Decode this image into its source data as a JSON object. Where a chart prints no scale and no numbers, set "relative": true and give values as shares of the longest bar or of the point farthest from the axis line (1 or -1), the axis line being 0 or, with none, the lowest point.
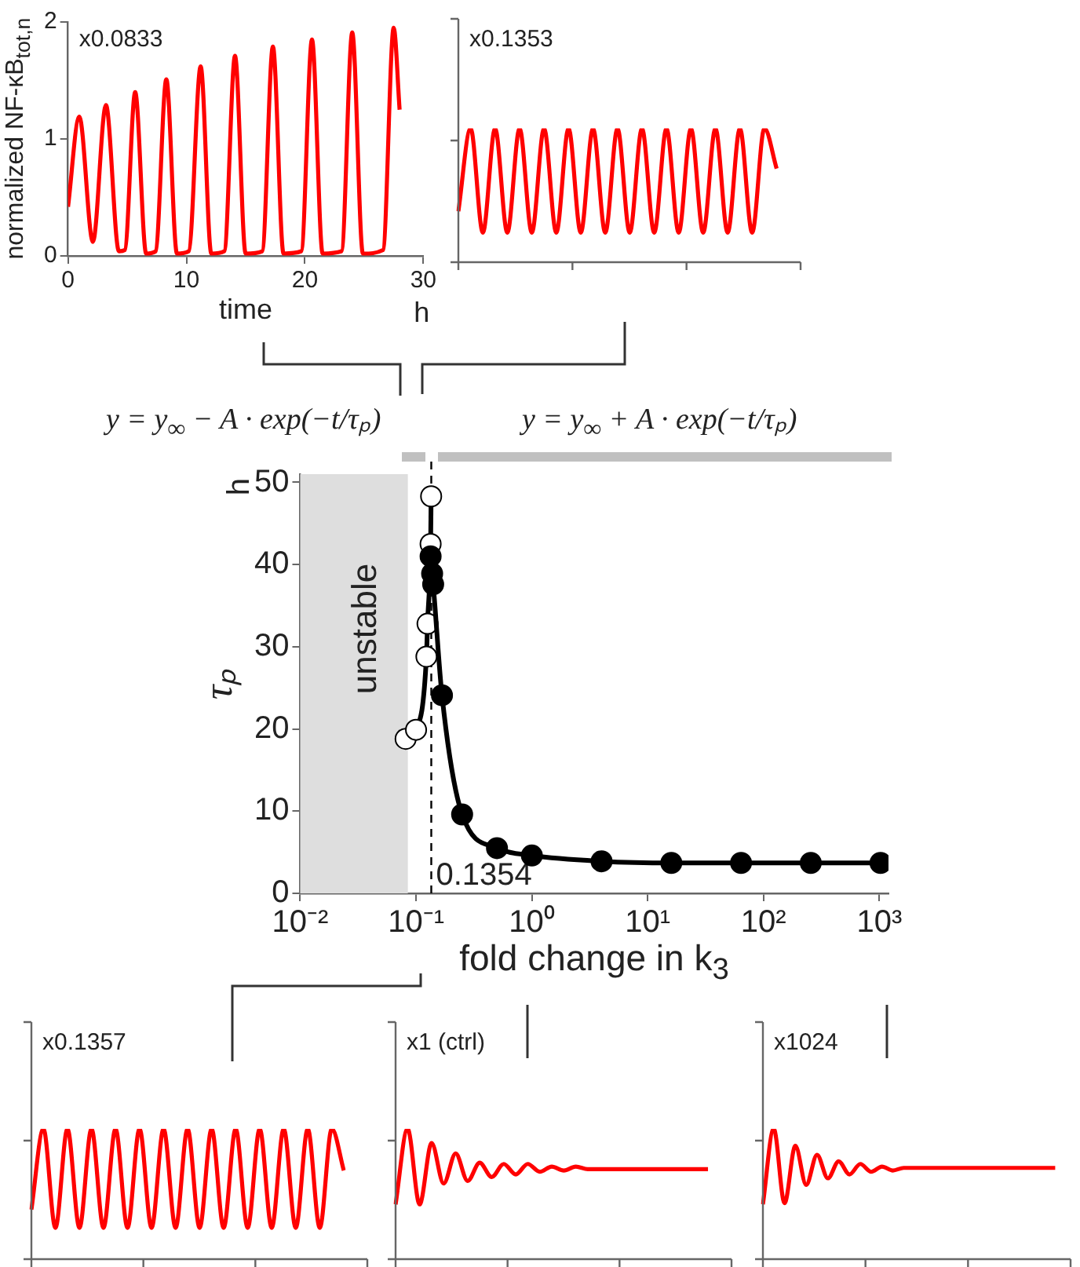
{
  "chart_data": [
    {
      "type": "line",
      "title": "x0.0833",
      "xlabel": "time",
      "ylabel": "normalized NF-κB$_{tot,n}$",
      "annotations": [
        "h"
      ],
      "x": [
        0,
        0.95,
        2.1,
        3.2,
        4.3,
        4.8,
        5.67,
        6.6,
        7.4,
        8.3,
        9.2,
        10.2,
        11.2,
        12.1,
        13.2,
        14.1,
        15.0,
        16.4,
        17.3,
        18.2,
        19.7,
        20.6,
        21.5,
        23.1,
        24.0,
        24.9,
        26.6,
        27.5,
        28.0
      ],
      "values": [
        0.42,
        1.19,
        0.12,
        1.29,
        0.04,
        0.05,
        1.4,
        0.02,
        0.04,
        1.51,
        0.02,
        0.04,
        1.62,
        0.02,
        0.04,
        1.71,
        0.02,
        0.04,
        1.79,
        0.02,
        0.04,
        1.85,
        0.02,
        0.04,
        1.91,
        0.02,
        0.05,
        1.95,
        1.25
      ],
      "color": "#ff0000",
      "xlim": [
        0,
        30
      ],
      "ylim": [
        0,
        2
      ],
      "xticks": [
        0,
        10,
        20,
        30
      ],
      "yticks": [
        0,
        1,
        2
      ]
    },
    {
      "type": "line",
      "title": "x0.1353",
      "relative": true,
      "categories": [
        null,
        null,
        null,
        null,
        null,
        null,
        null,
        null,
        null,
        null,
        null,
        null,
        null,
        null,
        null,
        null,
        null,
        null,
        null,
        null,
        null,
        null,
        null,
        null,
        null,
        null,
        null
      ],
      "values": [
        0.38,
        1,
        0.22,
        1,
        0.22,
        1,
        0.22,
        1,
        0.22,
        1,
        0.22,
        1,
        0.22,
        1,
        0.22,
        1,
        0.22,
        1,
        0.22,
        1,
        0.22,
        1,
        0.22,
        1,
        0.22,
        1,
        0.7
      ],
      "color": "#ff0000"
    },
    {
      "type": "line",
      "ylabel": "τₚ",
      "xlabel": "fold change in k$_{3}$",
      "annotations": [
        "h",
        "y = y$_{∞}$ − A · exp(−t/τₚ)",
        "y = y$_{∞}$ + A · exp(−t/τₚ)"
      ],
      "series": [
        {
          "x": [
            0.0813,
            0.1,
            0.123,
            0.1257,
            0.1336,
            0.135
          ],
          "values": [
            18.8,
            19.9,
            28.8,
            32.8,
            42.5,
            48.3
          ],
          "color": "#ffffff"
        },
        {
          "x": [
            0.1336,
            0.1377,
            0.1406,
            0.1675,
            0.25,
            0.5,
            1,
            4,
            16,
            64,
            256,
            1024
          ],
          "values": [
            41.0,
            38.9,
            37.6,
            24.1,
            9.6,
            5.5,
            4.6,
            3.9,
            3.7,
            3.7,
            3.7,
            3.7
          ],
          "color": "#000000"
        }
      ],
      "xlim": [
        0.01,
        1200
      ],
      "ylim": [
        0,
        51
      ],
      "xticks": [
        {
          "value": 0.01,
          "label": "10⁻²"
        },
        {
          "value": 0.1,
          "label": "10⁻¹"
        },
        {
          "value": 1,
          "label": "10⁰"
        },
        {
          "value": 10,
          "label": "10¹"
        },
        {
          "value": 100,
          "label": "10²"
        },
        {
          "value": 1000,
          "label": "10³"
        }
      ],
      "yticks": [
        0,
        10,
        20,
        30,
        40,
        50
      ],
      "log": "x",
      "marker": "circle",
      "ref_lines": [
        {
          "axis": "x",
          "value": 0.1354,
          "label": "0.1354",
          "line_style": "dashed",
          "color": "#000000"
        }
      ],
      "bands": [
        {
          "axis": "x",
          "from": 0.01,
          "to": 0.085,
          "label": "unstable",
          "color": "#dedede"
        }
      ]
    },
    {
      "type": "line",
      "title": "x0.1357",
      "relative": true,
      "categories": [
        null,
        null,
        null,
        null,
        null,
        null,
        null,
        null,
        null,
        null,
        null,
        null,
        null,
        null,
        null,
        null,
        null,
        null,
        null,
        null,
        null,
        null,
        null,
        null,
        null,
        null,
        null
      ],
      "values": [
        0.38,
        1,
        0.24,
        1,
        0.24,
        1,
        0.24,
        1,
        0.24,
        1,
        0.24,
        1,
        0.24,
        1,
        0.24,
        1,
        0.24,
        1,
        0.24,
        1,
        0.24,
        1,
        0.24,
        1,
        0.24,
        1,
        0.68
      ],
      "color": "#ff0000"
    },
    {
      "type": "line",
      "title": "x1 (ctrl)",
      "relative": true,
      "categories": [
        null,
        null,
        null,
        null,
        null,
        null,
        null,
        null,
        null,
        null,
        null,
        null,
        null,
        null,
        null,
        null,
        null,
        null,
        null,
        null,
        null,
        null,
        null,
        null,
        null,
        null,
        null
      ],
      "values": [
        0.42,
        1,
        0.42,
        0.89,
        0.58,
        0.81,
        0.6,
        0.74,
        0.63,
        0.73,
        0.65,
        0.73,
        0.67,
        0.71,
        0.68,
        0.71,
        0.69,
        0.69,
        0.69,
        0.69,
        0.69,
        0.69,
        0.69,
        0.69,
        0.69,
        0.69,
        0.69
      ],
      "color": "#ff0000"
    },
    {
      "type": "line",
      "title": "x1024",
      "relative": true,
      "categories": [
        null,
        null,
        null,
        null,
        null,
        null,
        null,
        null,
        null,
        null,
        null,
        null,
        null,
        null,
        null,
        null,
        null,
        null,
        null,
        null,
        null,
        null,
        null,
        null,
        null,
        null,
        null,
        null
      ],
      "values": [
        0.42,
        1,
        0.43,
        0.87,
        0.57,
        0.8,
        0.62,
        0.75,
        0.65,
        0.73,
        0.67,
        0.71,
        0.68,
        0.7,
        0.7,
        0.7,
        0.7,
        0.7,
        0.7,
        0.7,
        0.7,
        0.7,
        0.7,
        0.7,
        0.7,
        0.7,
        0.7,
        0.7
      ],
      "color": "#ff0000"
    }
  ]
}
